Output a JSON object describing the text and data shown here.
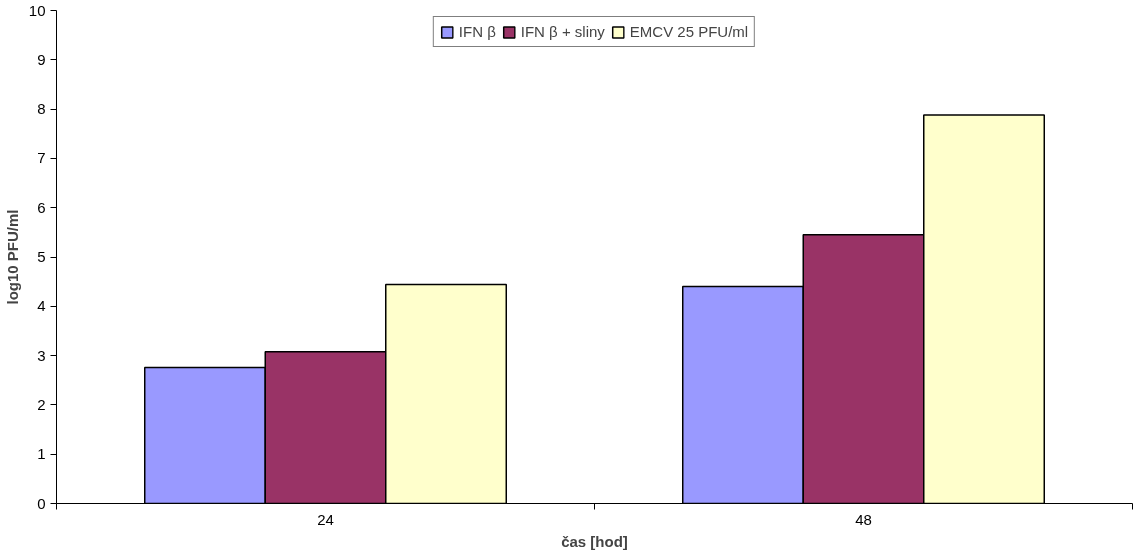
{
  "chart_data": {
    "type": "bar",
    "xlabel": "čas [hod]",
    "ylabel": "log10 PFU/ml",
    "categories": [
      "24",
      "48"
    ],
    "series": [
      {
        "name": "IFN β",
        "color": "#9999ff",
        "values": [
          2.76,
          4.4
        ]
      },
      {
        "name": "IFN β + sliny",
        "color": "#993366",
        "values": [
          3.08,
          5.45
        ]
      },
      {
        "name": "EMCV 25 PFU/ml",
        "color": "#ffffcc",
        "values": [
          4.44,
          7.88
        ]
      }
    ],
    "ylim": [
      0,
      10
    ],
    "yticks": [
      0,
      1,
      2,
      3,
      4,
      5,
      6,
      7,
      8,
      9,
      10
    ],
    "grid": false,
    "legend": "top"
  }
}
